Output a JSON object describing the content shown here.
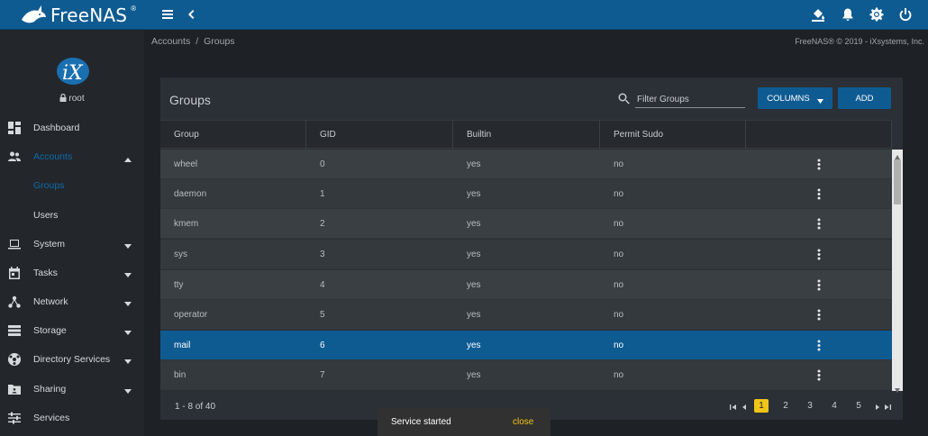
{
  "app": {
    "logo_text": "FreeNAS",
    "logo_sup": "®"
  },
  "topbar": {
    "icons": [
      "menu-icon",
      "chevron-left-icon",
      "theme-bucket-icon",
      "bell-icon",
      "gear-icon",
      "power-icon"
    ]
  },
  "sidebar": {
    "user": "root",
    "items": [
      {
        "label": "Dashboard",
        "icon": "dashboard-icon",
        "expandable": false
      },
      {
        "label": "Accounts",
        "icon": "people-icon",
        "expandable": true,
        "expanded": true,
        "active": true
      },
      {
        "label": "Groups",
        "icon": "",
        "sub": true,
        "active": true
      },
      {
        "label": "Users",
        "icon": "",
        "sub": true
      },
      {
        "label": "System",
        "icon": "laptop-icon",
        "expandable": true
      },
      {
        "label": "Tasks",
        "icon": "calendar-icon",
        "expandable": true
      },
      {
        "label": "Network",
        "icon": "network-icon",
        "expandable": true
      },
      {
        "label": "Storage",
        "icon": "storage-icon",
        "expandable": true
      },
      {
        "label": "Directory Services",
        "icon": "directory-icon",
        "expandable": true
      },
      {
        "label": "Sharing",
        "icon": "folder-share-icon",
        "expandable": true
      },
      {
        "label": "Services",
        "icon": "sliders-icon",
        "expandable": false
      }
    ]
  },
  "breadcrumb": {
    "parent": "Accounts",
    "separator": "/",
    "current": "Groups"
  },
  "copyright": "FreeNAS® © 2019 - iXsystems, Inc.",
  "panel": {
    "title": "Groups",
    "search_placeholder": "Filter Groups",
    "columns_label": "COLUMNS",
    "add_label": "ADD"
  },
  "table": {
    "headers": [
      "Group",
      "GID",
      "Builtin",
      "Permit Sudo"
    ],
    "rows": [
      {
        "group": "wheel",
        "gid": "0",
        "builtin": "yes",
        "sudo": "no"
      },
      {
        "group": "daemon",
        "gid": "1",
        "builtin": "yes",
        "sudo": "no"
      },
      {
        "group": "kmem",
        "gid": "2",
        "builtin": "yes",
        "sudo": "no"
      },
      {
        "group": "sys",
        "gid": "3",
        "builtin": "yes",
        "sudo": "no"
      },
      {
        "group": "tty",
        "gid": "4",
        "builtin": "yes",
        "sudo": "no"
      },
      {
        "group": "operator",
        "gid": "5",
        "builtin": "yes",
        "sudo": "no"
      },
      {
        "group": "mail",
        "gid": "6",
        "builtin": "yes",
        "sudo": "no",
        "selected": true
      },
      {
        "group": "bin",
        "gid": "7",
        "builtin": "yes",
        "sudo": "no"
      }
    ]
  },
  "pagination": {
    "range_text": "1 - 8 of 40",
    "pages": [
      "1",
      "2",
      "3",
      "4",
      "5"
    ],
    "current_page": "1"
  },
  "snackbar": {
    "message": "Service started",
    "action": "close"
  },
  "colors": {
    "accent": "#0e5b92",
    "page_active": "#f0c419",
    "bg": "#1e2227"
  }
}
